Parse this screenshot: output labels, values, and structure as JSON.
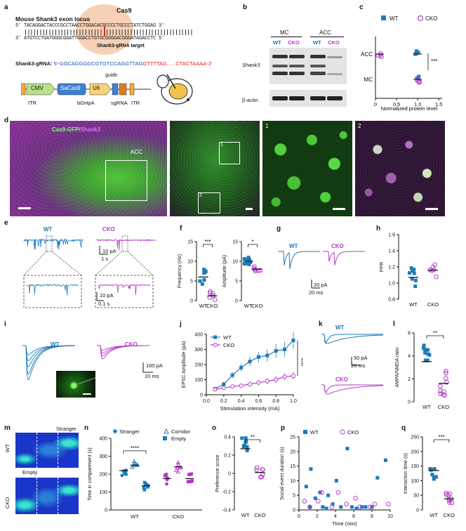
{
  "colors": {
    "wt": "#1f7bb8",
    "cko": "#b53bc9",
    "guide_red": "#e02424",
    "text": "#111111"
  },
  "panel_labels": [
    "a",
    "b",
    "c",
    "d",
    "e",
    "f",
    "g",
    "h",
    "i",
    "j",
    "k",
    "l",
    "m",
    "n",
    "o",
    "p",
    "q"
  ],
  "panel_a": {
    "title": "Mouse Shank3 exon locus",
    "cas9_label": "Cas9",
    "top_seq": "5' TACAGGACTACCCGCCTAACCTGGACACGCCCCTGCCCTATCTGGAG 3'",
    "bottom_seq": "3' ATGTCCTGATGGGCGGATTGGACCTGTGCGGGGACGGGATAGACCTC 5'",
    "target_label": "Shank3-gRNA target",
    "grna_prefix": "Shank3-gRNA: ",
    "grna_seq_blue": "5'-GGCAGGGGCGTGTCCAGGTTAG",
    "grna_seq_red": "GTTTTAG......CTACTAAAA-3'",
    "guide_label": "guide",
    "elements": [
      "CMV",
      "SaCas9",
      "U6"
    ],
    "bottom_labels": [
      "ITR",
      "bGHpA",
      "sgRNA",
      "ITR"
    ]
  },
  "panel_b": {
    "headers": [
      "MC",
      "ACC"
    ],
    "sublabels": [
      "WT",
      "CKO",
      "WT",
      "CKO"
    ],
    "row_labels": [
      "Shank3",
      "β-actin"
    ]
  },
  "panel_c": {
    "legend": [
      "WT",
      "CKO"
    ],
    "categories": [
      "ACC",
      "MC"
    ],
    "xlabel": "Normalized protein level",
    "xticks": [
      "0",
      "0.5",
      "1.0",
      "1.5"
    ],
    "significance": "***",
    "chart_data": {
      "type": "scatter",
      "series": [
        {
          "name": "WT",
          "values": {
            "ACC": 1.0,
            "MC": 1.0
          }
        },
        {
          "name": "CKO",
          "values": {
            "ACC": 0.1,
            "MC": 1.0
          }
        }
      ],
      "xlim": [
        0,
        1.5
      ]
    }
  },
  "panel_d": {
    "stain": "Cas9-GFP/",
    "stain2": "Shank3",
    "region": "ACC",
    "insets": [
      "1",
      "2"
    ]
  },
  "panel_e": {
    "wt": "WT",
    "cko": "CKO",
    "scale1": "10 pA",
    "scale1t": "1 s",
    "scale2": "10 pA",
    "scale2t": "0.1 s"
  },
  "panel_f": {
    "freq": {
      "ylabel": "Frequency (Hz)",
      "yticks": [
        "0",
        "5",
        "10",
        "15"
      ],
      "sig": "***",
      "wt_mean": 6,
      "cko_mean": 1.2,
      "ylim": [
        0,
        15
      ]
    },
    "amp": {
      "ylabel": "Amplitude (pA)",
      "yticks": [
        "0",
        "5",
        "10",
        "15"
      ],
      "sig": "*",
      "wt_mean": 10,
      "cko_mean": 8,
      "ylim": [
        0,
        15
      ]
    },
    "xlabels": [
      "WT",
      "CKO"
    ]
  },
  "panel_g": {
    "wt": "WT",
    "cko": "CKO",
    "scale_y": "20 pA",
    "scale_x": "20 ms"
  },
  "panel_h": {
    "ylabel": "PPR",
    "yticks": [
      "0.8",
      "1.0",
      "1.2",
      "1.4",
      "1.6"
    ],
    "xlabels": [
      "WT",
      "CKO"
    ],
    "wt_mean": 1.07,
    "cko_mean": 1.16,
    "ylim": [
      0.8,
      1.6
    ]
  },
  "panel_i": {
    "wt": "WT",
    "cko": "CKO",
    "scale_y": "100 pA",
    "scale_x": "10 ms"
  },
  "panel_j": {
    "legend": [
      "WT",
      "CKO"
    ],
    "ylabel": "EPSC Amplitude (pA)",
    "xlabel": "Stimulation intensity (mA)",
    "yticks": [
      "0",
      "100",
      "200",
      "300",
      "400"
    ],
    "xticks": [
      "0.0",
      "0.2",
      "0.4",
      "0.6",
      "0.8",
      "1.0"
    ],
    "sig": "****",
    "chart_data": {
      "type": "line",
      "x": [
        0.1,
        0.2,
        0.3,
        0.4,
        0.5,
        0.6,
        0.7,
        0.8,
        0.9,
        1.0
      ],
      "series": [
        {
          "name": "WT",
          "values": [
            40,
            70,
            130,
            180,
            220,
            250,
            260,
            290,
            300,
            360
          ]
        },
        {
          "name": "CKO",
          "values": [
            35,
            45,
            55,
            60,
            70,
            80,
            90,
            100,
            120,
            125
          ]
        }
      ],
      "ylim": [
        0,
        400
      ],
      "xlim": [
        0,
        1.0
      ]
    }
  },
  "panel_k": {
    "wt": "WT",
    "cko": "CKO",
    "scale_y": "50 pA",
    "scale_x": "20 ms"
  },
  "panel_l": {
    "ylabel": "AMPA/NMDA ratio",
    "yticks": [
      "0",
      "2",
      "4",
      "6"
    ],
    "xlabels": [
      "WT",
      "CKO"
    ],
    "sig": "**",
    "wt_mean": 3.5,
    "cko_mean": 1.6,
    "ylim": [
      0,
      6
    ]
  },
  "panel_m": {
    "rows": [
      "WT",
      "CKO"
    ],
    "stranger": "Stranger",
    "empty": "Empty"
  },
  "panel_n": {
    "legend": [
      "Stranger",
      "Corridor",
      "Empty"
    ],
    "ylabel": "Time in compartment (s)",
    "yticks": [
      "0",
      "100",
      "200",
      "300",
      "400"
    ],
    "groups": [
      "WT",
      "CKO"
    ],
    "sig": "****",
    "chart_data": {
      "type": "bar",
      "categories": [
        "WT",
        "CKO"
      ],
      "series": [
        {
          "name": "Stranger",
          "values": [
            220,
            175
          ]
        },
        {
          "name": "Corridor",
          "values": [
            250,
            240
          ]
        },
        {
          "name": "Empty",
          "values": [
            135,
            175
          ]
        }
      ],
      "ylim": [
        0,
        400
      ]
    }
  },
  "panel_o": {
    "ylabel": "Preference score",
    "yticks": [
      "-0.4",
      "-0.2",
      "0",
      "0.2",
      "0.4"
    ],
    "xlabels": [
      "WT",
      "CKO"
    ],
    "sig": "**",
    "wt_mean": 0.27,
    "cko_mean": 0.01,
    "ylim": [
      -0.4,
      0.4
    ]
  },
  "panel_p": {
    "legend": [
      "WT",
      "CKO"
    ],
    "ylabel": "Social event duration (s)",
    "xlabel": "Time (min)",
    "yticks": [
      "0",
      "5",
      "10",
      "15",
      "20",
      "25"
    ],
    "xticks": [
      "0",
      "2",
      "4",
      "6",
      "8",
      "10"
    ],
    "chart_data": {
      "type": "scatter",
      "series": [
        {
          "name": "WT",
          "points": [
            [
              0.8,
              8
            ],
            [
              1.3,
              14
            ],
            [
              1.8,
              4
            ],
            [
              2.3,
              6
            ],
            [
              2.6,
              1
            ],
            [
              3.2,
              5
            ],
            [
              3.7,
              2
            ],
            [
              4.1,
              10
            ],
            [
              4.6,
              1
            ],
            [
              5.3,
              21
            ],
            [
              5.8,
              1
            ],
            [
              6.3,
              0.5
            ],
            [
              6.9,
              1
            ],
            [
              7.3,
              1
            ],
            [
              8,
              1
            ],
            [
              8.6,
              11
            ],
            [
              9.5,
              17
            ],
            [
              3,
              0.5
            ],
            [
              1.2,
              1
            ]
          ]
        },
        {
          "name": "CKO",
          "points": [
            [
              0.6,
              3
            ],
            [
              1.2,
              1
            ],
            [
              2.1,
              3
            ],
            [
              2.5,
              6
            ],
            [
              3.6,
              1
            ],
            [
              4.3,
              6
            ],
            [
              5.2,
              2
            ],
            [
              6.2,
              4
            ],
            [
              6.7,
              1
            ],
            [
              7.8,
              1
            ],
            [
              8.3,
              2
            ],
            [
              9.8,
              2
            ]
          ]
        }
      ],
      "xlim": [
        0,
        10
      ],
      "ylim": [
        0,
        25
      ]
    }
  },
  "panel_q": {
    "ylabel": "Interaction time (s)",
    "yticks": [
      "0",
      "50",
      "100",
      "150",
      "200",
      "250"
    ],
    "xlabels": [
      "WT",
      "CKO"
    ],
    "sig": "***",
    "wt_mean": 135,
    "cko_mean": 38,
    "ylim": [
      0,
      250
    ]
  }
}
